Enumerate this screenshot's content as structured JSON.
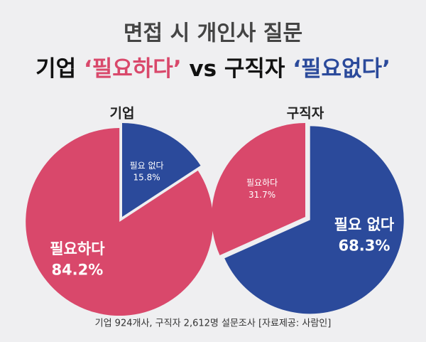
{
  "title": "면접 시 개인사 질문",
  "subtitle_parts": [
    {
      "text": "기업 ",
      "color": "#111111"
    },
    {
      "text": "‘필요하다’",
      "color": "#d9486b"
    },
    {
      "text": " vs 구직자 ",
      "color": "#111111"
    },
    {
      "text": "‘필요없다’",
      "color": "#2b4a9b"
    }
  ],
  "chart_data": [
    {
      "type": "pie",
      "title": "기업",
      "categories": [
        "필요 없다",
        "필요하다"
      ],
      "values": [
        15.8,
        84.2
      ],
      "value_labels": [
        "15.8%",
        "84.2%"
      ],
      "colors": [
        "#2b4a9b",
        "#d9486b"
      ]
    },
    {
      "type": "pie",
      "title": "구직자",
      "categories": [
        "필요 없다",
        "필요하다"
      ],
      "values": [
        68.3,
        31.7
      ],
      "value_labels": [
        "68.3%",
        "31.7%"
      ],
      "colors": [
        "#2b4a9b",
        "#d9486b"
      ]
    }
  ],
  "footnote": "기업 924개사, 구직자 2,612명 설문조사  [자료제공: 사람인]"
}
